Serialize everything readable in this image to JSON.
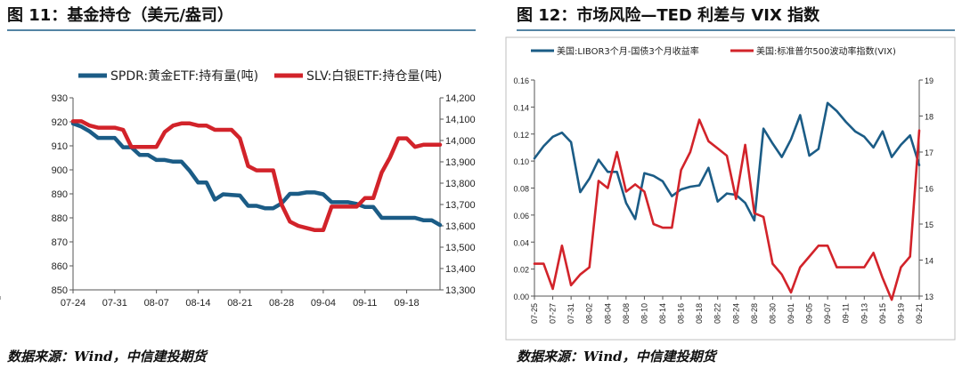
{
  "colors": {
    "blue": "#1b5c86",
    "red": "#d2232a",
    "rule": "#1b5c86",
    "axis": "#555555"
  },
  "left_panel": {
    "title": "图 11：基金持仓（美元/盎司）",
    "source": "数据来源：Wind，中信建投期货"
  },
  "right_panel": {
    "title": "图 12：市场风险—TED 利差与 VIX 指数",
    "source": "数据来源：Wind，中信建投期货"
  },
  "chart_data": [
    {
      "type": "line",
      "x_ticks": [
        "07-24",
        "07-31",
        "08-07",
        "08-14",
        "08-21",
        "08-28",
        "09-04",
        "09-11",
        "09-18"
      ],
      "y_left": {
        "ylim": [
          850,
          930
        ],
        "ticks": [
          "850",
          "860",
          "870",
          "880",
          "890",
          "900",
          "910",
          "920",
          "930"
        ]
      },
      "y_right": {
        "ylim": [
          13300,
          14200
        ],
        "ticks": [
          "13,300",
          "13,400",
          "13,500",
          "13,600",
          "13,700",
          "13,800",
          "13,900",
          "14,000",
          "14,100",
          "14,200"
        ]
      },
      "legend_placement": "top",
      "series": [
        {
          "name": "SPDR:黄金ETF:持有量(吨)",
          "axis": "left",
          "color": "blue",
          "x": [
            "07-24",
            "07-25",
            "07-26",
            "07-27",
            "07-28",
            "07-31",
            "08-01",
            "08-02",
            "08-03",
            "08-04",
            "08-07",
            "08-08",
            "08-09",
            "08-10",
            "08-11",
            "08-14",
            "08-15",
            "08-16",
            "08-17",
            "08-18",
            "08-21",
            "08-22",
            "08-23",
            "08-24",
            "08-25",
            "08-28",
            "08-29",
            "08-30",
            "08-31",
            "09-01",
            "09-04",
            "09-05",
            "09-06",
            "09-07",
            "09-08",
            "09-11",
            "09-12",
            "09-13",
            "09-14",
            "09-15",
            "09-18",
            "09-19",
            "09-20",
            "09-21",
            "09-22"
          ],
          "values": [
            919.3,
            918.0,
            916.0,
            913.3,
            913.3,
            913.3,
            909.4,
            909.4,
            906.2,
            906.2,
            904.1,
            904.1,
            903.4,
            903.4,
            899.5,
            894.7,
            894.7,
            887.6,
            889.8,
            889.5,
            889.3,
            885.0,
            885.0,
            884.0,
            884.0,
            886.0,
            890.0,
            890.0,
            890.6,
            890.6,
            889.8,
            886.5,
            886.5,
            886.5,
            885.8,
            884.5,
            884.5,
            880.0,
            880.0,
            880.0,
            880.0,
            880.0,
            879.0,
            879.0,
            877.0
          ]
        },
        {
          "name": "SLV:白银ETF:持仓量(吨)",
          "axis": "right",
          "color": "red",
          "x": [
            "07-24",
            "07-25",
            "07-26",
            "07-27",
            "07-28",
            "07-31",
            "08-01",
            "08-02",
            "08-03",
            "08-04",
            "08-07",
            "08-08",
            "08-09",
            "08-10",
            "08-11",
            "08-14",
            "08-15",
            "08-16",
            "08-17",
            "08-18",
            "08-21",
            "08-22",
            "08-23",
            "08-24",
            "08-25",
            "08-28",
            "08-29",
            "08-30",
            "08-31",
            "09-01",
            "09-04",
            "09-05",
            "09-06",
            "09-07",
            "09-08",
            "09-11",
            "09-12",
            "09-13",
            "09-14",
            "09-15",
            "09-18",
            "09-19",
            "09-20",
            "09-21",
            "09-22"
          ],
          "values": [
            14090,
            14090,
            14070,
            14060,
            14060,
            14060,
            14050,
            13970,
            13970,
            13970,
            13970,
            14040,
            14070,
            14080,
            14080,
            14070,
            14070,
            14050,
            14050,
            14050,
            14010,
            13880,
            13860,
            13860,
            13860,
            13700,
            13620,
            13600,
            13590,
            13580,
            13580,
            13690,
            13690,
            13690,
            13690,
            13730,
            13730,
            13850,
            13920,
            14010,
            14010,
            13970,
            13980,
            13980,
            13980
          ]
        }
      ]
    },
    {
      "type": "line",
      "x_ticks": [
        "07-25",
        "07-27",
        "07-29",
        "07-31",
        "08-02",
        "08-04",
        "08-06",
        "08-08",
        "08-10",
        "08-12",
        "08-14",
        "08-16",
        "08-18",
        "08-20",
        "08-22",
        "08-24",
        "08-26",
        "08-28",
        "08-30",
        "09-01",
        "09-03",
        "09-05",
        "09-07",
        "09-09",
        "09-11",
        "09-13",
        "09-15",
        "09-17",
        "09-19",
        "09-21"
      ],
      "y_left": {
        "ylim": [
          0,
          0.16
        ],
        "ticks": [
          "0.00",
          "0.02",
          "0.04",
          "0.06",
          "0.08",
          "0.10",
          "0.12",
          "0.14",
          "0.16"
        ]
      },
      "y_right": {
        "ylim": [
          13,
          19
        ],
        "ticks": [
          "13",
          "14",
          "15",
          "16",
          "17",
          "18",
          "19"
        ]
      },
      "legend_placement": "top",
      "series": [
        {
          "name": "美国:LIBOR3个月-国债3个月收益率",
          "axis": "left",
          "color": "blue",
          "x": [
            "07-25",
            "07-26",
            "07-27",
            "07-28",
            "07-31",
            "08-01",
            "08-02",
            "08-03",
            "08-04",
            "08-07",
            "08-08",
            "08-09",
            "08-10",
            "08-11",
            "08-14",
            "08-15",
            "08-16",
            "08-17",
            "08-18",
            "08-21",
            "08-22",
            "08-23",
            "08-24",
            "08-25",
            "08-28",
            "08-29",
            "08-30",
            "08-31",
            "09-01",
            "09-04",
            "09-05",
            "09-06",
            "09-07",
            "09-08",
            "09-11",
            "09-12",
            "09-13",
            "09-14",
            "09-15",
            "09-18",
            "09-19",
            "09-20",
            "09-21"
          ],
          "values": [
            0.102,
            0.111,
            0.118,
            0.121,
            0.114,
            0.077,
            0.087,
            0.101,
            0.092,
            0.092,
            0.069,
            0.057,
            0.091,
            0.089,
            0.085,
            0.074,
            0.079,
            0.081,
            0.082,
            0.095,
            0.07,
            0.076,
            0.075,
            0.069,
            0.056,
            0.124,
            0.113,
            0.103,
            0.116,
            0.134,
            0.104,
            0.109,
            0.143,
            0.137,
            0.129,
            0.122,
            0.118,
            0.11,
            0.122,
            0.103,
            0.112,
            0.119,
            0.097
          ]
        },
        {
          "name": "美国:标准普尔500波动率指数(VIX)",
          "axis": "right",
          "color": "red",
          "x": [
            "07-25",
            "07-26",
            "07-27",
            "07-28",
            "07-31",
            "08-01",
            "08-02",
            "08-03",
            "08-04",
            "08-07",
            "08-08",
            "08-09",
            "08-10",
            "08-11",
            "08-14",
            "08-15",
            "08-16",
            "08-17",
            "08-18",
            "08-21",
            "08-22",
            "08-23",
            "08-24",
            "08-25",
            "08-28",
            "08-29",
            "08-30",
            "08-31",
            "09-01",
            "09-04",
            "09-05",
            "09-06",
            "09-07",
            "09-08",
            "09-11",
            "09-12",
            "09-13",
            "09-14",
            "09-15",
            "09-18",
            "09-19",
            "09-20",
            "09-21"
          ],
          "values": [
            13.9,
            13.9,
            13.2,
            14.4,
            13.3,
            13.6,
            13.8,
            16.2,
            16.0,
            17.0,
            15.9,
            16.1,
            15.9,
            15.0,
            14.9,
            14.9,
            16.5,
            17.0,
            17.9,
            17.3,
            17.1,
            16.9,
            15.7,
            17.2,
            15.3,
            15.2,
            13.9,
            13.6,
            13.1,
            13.8,
            14.1,
            14.4,
            14.4,
            13.8,
            13.8,
            13.8,
            13.8,
            14.2,
            13.5,
            12.9,
            13.8,
            14.1,
            17.6
          ]
        }
      ]
    }
  ]
}
